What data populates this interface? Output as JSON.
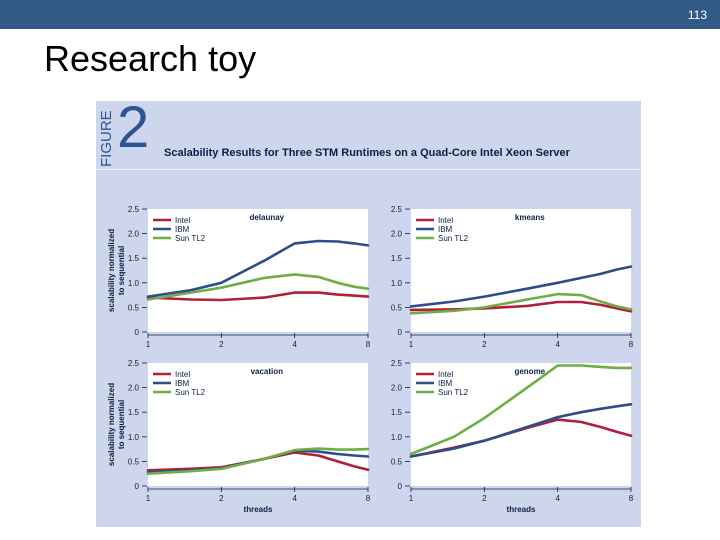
{
  "slide": {
    "number": "113",
    "title": "Research toy"
  },
  "figure": {
    "label_word": "FIGURE",
    "label_number": "2",
    "title": "Scalability Results for Three STM Runtimes on a Quad-Core Intel Xeon Server"
  },
  "axes": {
    "ylabel_line1": "scalability normalized",
    "ylabel_line2": "to sequential",
    "xlabel": "threads"
  },
  "colors": {
    "Intel": "#b01f3c",
    "IBM": "#2e4d8c",
    "Sun TL2": "#6fae45"
  },
  "chart_data": [
    {
      "type": "line",
      "title": "delaunay",
      "x": [
        1,
        1.5,
        2,
        3,
        4,
        5,
        6,
        7,
        8
      ],
      "xticks": [
        1,
        2,
        4,
        8
      ],
      "xscale": "log2",
      "ylim": [
        0,
        2.5
      ],
      "yticks": [
        "0",
        "0.5",
        "1.0",
        "1.5",
        "2.0",
        "2.5"
      ],
      "xlabel": "",
      "series": [
        {
          "name": "Intel",
          "values": [
            0.7,
            0.66,
            0.65,
            0.7,
            0.8,
            0.8,
            0.76,
            0.74,
            0.72
          ]
        },
        {
          "name": "IBM",
          "values": [
            0.72,
            0.85,
            1.0,
            1.45,
            1.8,
            1.85,
            1.84,
            1.8,
            1.76
          ]
        },
        {
          "name": "Sun TL2",
          "values": [
            0.66,
            0.8,
            0.9,
            1.1,
            1.17,
            1.12,
            1.0,
            0.92,
            0.88
          ]
        }
      ]
    },
    {
      "type": "line",
      "title": "kmeans",
      "x": [
        1,
        1.5,
        2,
        3,
        4,
        5,
        6,
        7,
        8
      ],
      "xticks": [
        1,
        2,
        4,
        8
      ],
      "xscale": "log2",
      "ylim": [
        0,
        2.5
      ],
      "yticks": [
        "0",
        "0.5",
        "1.0",
        "1.5",
        "2.0",
        "2.5"
      ],
      "xlabel": "",
      "series": [
        {
          "name": "Intel",
          "values": [
            0.45,
            0.46,
            0.48,
            0.53,
            0.61,
            0.61,
            0.55,
            0.48,
            0.42
          ]
        },
        {
          "name": "IBM",
          "values": [
            0.52,
            0.62,
            0.72,
            0.88,
            1.0,
            1.1,
            1.18,
            1.27,
            1.33
          ]
        },
        {
          "name": "Sun TL2",
          "values": [
            0.38,
            0.43,
            0.5,
            0.66,
            0.77,
            0.75,
            0.62,
            0.52,
            0.46
          ]
        }
      ]
    },
    {
      "type": "line",
      "title": "vacation",
      "x": [
        1,
        1.5,
        2,
        3,
        4,
        5,
        6,
        7,
        8
      ],
      "xticks": [
        1,
        2,
        4,
        8
      ],
      "xscale": "log2",
      "ylim": [
        0,
        2.5
      ],
      "yticks": [
        "0",
        "0.5",
        "1.0",
        "1.5",
        "2.0",
        "2.5"
      ],
      "xlabel": "threads",
      "series": [
        {
          "name": "Intel",
          "values": [
            0.32,
            0.35,
            0.38,
            0.55,
            0.68,
            0.62,
            0.5,
            0.4,
            0.33
          ]
        },
        {
          "name": "IBM",
          "values": [
            0.28,
            0.32,
            0.36,
            0.55,
            0.72,
            0.7,
            0.65,
            0.62,
            0.6
          ]
        },
        {
          "name": "Sun TL2",
          "values": [
            0.25,
            0.3,
            0.35,
            0.55,
            0.73,
            0.76,
            0.74,
            0.74,
            0.75
          ]
        }
      ]
    },
    {
      "type": "line",
      "title": "genome",
      "x": [
        1,
        1.5,
        2,
        3,
        4,
        5,
        6,
        7,
        8
      ],
      "xticks": [
        1,
        2,
        4,
        8
      ],
      "xscale": "log2",
      "ylim": [
        0,
        2.5
      ],
      "yticks": [
        "0",
        "0.5",
        "1.0",
        "1.5",
        "2.0",
        "2.5"
      ],
      "xlabel": "threads",
      "series": [
        {
          "name": "Intel",
          "values": [
            0.6,
            0.78,
            0.92,
            1.18,
            1.35,
            1.3,
            1.2,
            1.1,
            1.02
          ]
        },
        {
          "name": "IBM",
          "values": [
            0.6,
            0.76,
            0.92,
            1.2,
            1.4,
            1.5,
            1.57,
            1.62,
            1.66
          ]
        },
        {
          "name": "Sun TL2",
          "values": [
            0.65,
            1.0,
            1.38,
            2.0,
            2.45,
            2.45,
            2.42,
            2.4,
            2.4
          ]
        }
      ]
    }
  ]
}
